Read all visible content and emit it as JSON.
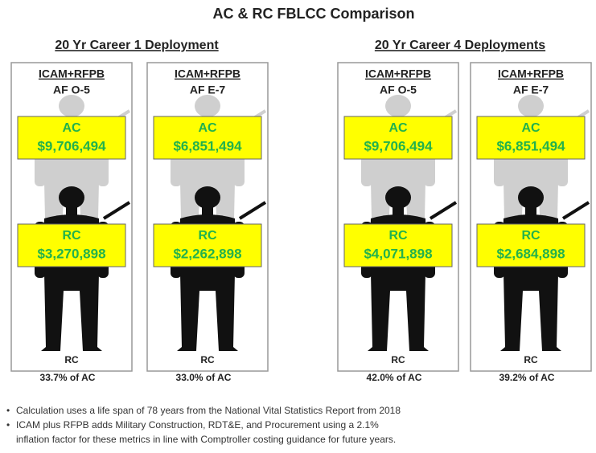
{
  "title": "AC & RC FBLCC Comparison",
  "groups": [
    {
      "title": "20 Yr Career 1 Deployment",
      "panels": [
        {
          "header": "ICAM+RFPB",
          "subtitle": "AF O-5",
          "ac_label": "AC",
          "ac_value": "$9,706,494",
          "rc_label": "RC",
          "rc_value": "$3,270,898",
          "bottom_label": "RC",
          "percent": "33.7% of AC"
        },
        {
          "header": "ICAM+RFPB",
          "subtitle": "AF E-7",
          "ac_label": "AC",
          "ac_value": "$6,851,494",
          "rc_label": "RC",
          "rc_value": "$2,262,898",
          "bottom_label": "RC",
          "percent": "33.0% of AC"
        }
      ]
    },
    {
      "title": "20 Yr Career 4 Deployments",
      "panels": [
        {
          "header": "ICAM+RFPB",
          "subtitle": "AF O-5",
          "ac_label": "AC",
          "ac_value": "$9,706,494",
          "rc_label": "RC",
          "rc_value": "$4,071,898",
          "bottom_label": "RC",
          "percent": "42.0% of AC"
        },
        {
          "header": "ICAM+RFPB",
          "subtitle": "AF E-7",
          "ac_label": "AC",
          "ac_value": "$6,851,494",
          "rc_label": "RC",
          "rc_value": "$2,684,898",
          "bottom_label": "RC",
          "percent": "39.2% of AC"
        }
      ]
    }
  ],
  "notes": [
    {
      "lines": [
        "Calculation uses a life span of 78 years from the National Vital Statistics Report from 2018"
      ]
    },
    {
      "lines": [
        "ICAM plus RFPB adds Military Construction, RDT&E, and Procurement using a 2.1%",
        "inflation factor for these metrics in line with Comptroller costing guidance for future years."
      ]
    }
  ]
}
